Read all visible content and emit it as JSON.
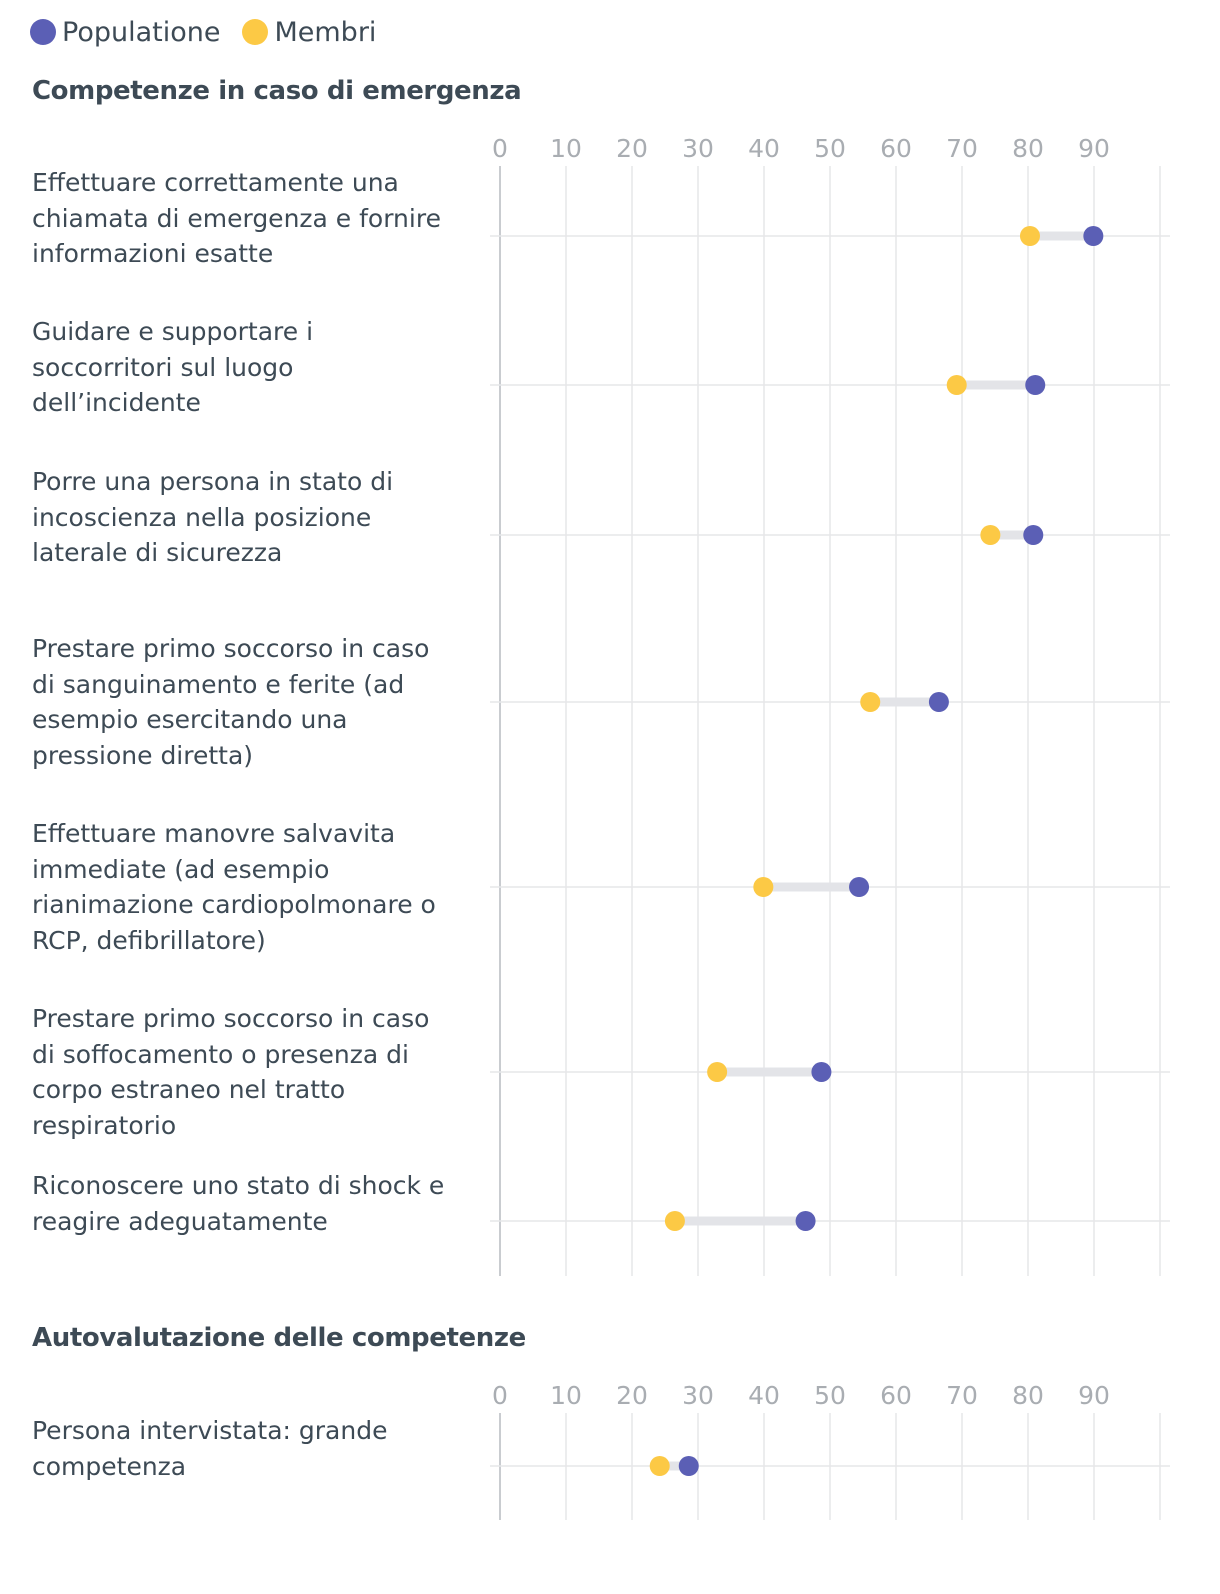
{
  "legend": {
    "items": [
      {
        "label": "Populatione",
        "color": "#5b5fb5"
      },
      {
        "label": "Membri",
        "color": "#fcc945"
      }
    ]
  },
  "chart_data": [
    {
      "type": "dumbbell",
      "title": "Competenze in caso di emergenza",
      "xlim": [
        0,
        100
      ],
      "ticks": [
        0,
        10,
        20,
        30,
        40,
        50,
        60,
        70,
        80,
        90
      ],
      "series": [
        {
          "name": "Populatione",
          "color": "#5b5fb5"
        },
        {
          "name": "Membri",
          "color": "#fcc945"
        }
      ],
      "categories": [
        "Effettuare correttamente una\nchiamata di emergenza e fornire\ninformazioni esatte",
        "Guidare e supportare i\nsoccorritori sul luogo\ndell’incidente",
        "Porre una persona in stato di\nincoscienza nella posizione\nlaterale di sicurezza",
        "Prestare primo soccorso in caso\ndi sanguinamento e ferite (ad\nesempio esercitando una\npressione diretta)",
        "Effettuare manovre salvavita\nimmediate (ad esempio\nrianimazione cardiopolmonare o\nRCP, defibrillatore)",
        "Prestare primo soccorso in caso\ndi soffocamento o presenza di\ncorpo estraneo nel tratto\nrespiratorio",
        "Riconoscere uno stato di shock e\nreagire adeguatamente"
      ],
      "populatione": [
        89.9,
        81.1,
        80.8,
        66.5,
        54.4,
        48.7,
        46.3
      ],
      "membri": [
        80.3,
        69.2,
        74.3,
        56.1,
        39.9,
        32.9,
        26.5
      ]
    },
    {
      "type": "dumbbell",
      "title": "Autovalutazione delle competenze",
      "xlim": [
        0,
        100
      ],
      "ticks": [
        0,
        10,
        20,
        30,
        40,
        50,
        60,
        70,
        80,
        90
      ],
      "series": [
        {
          "name": "Populatione",
          "color": "#5b5fb5"
        },
        {
          "name": "Membri",
          "color": "#fcc945"
        }
      ],
      "categories": [
        "Persona intervistata: grande\ncompetenza"
      ],
      "populatione": [
        28.6
      ],
      "membri": [
        24.2
      ]
    }
  ]
}
